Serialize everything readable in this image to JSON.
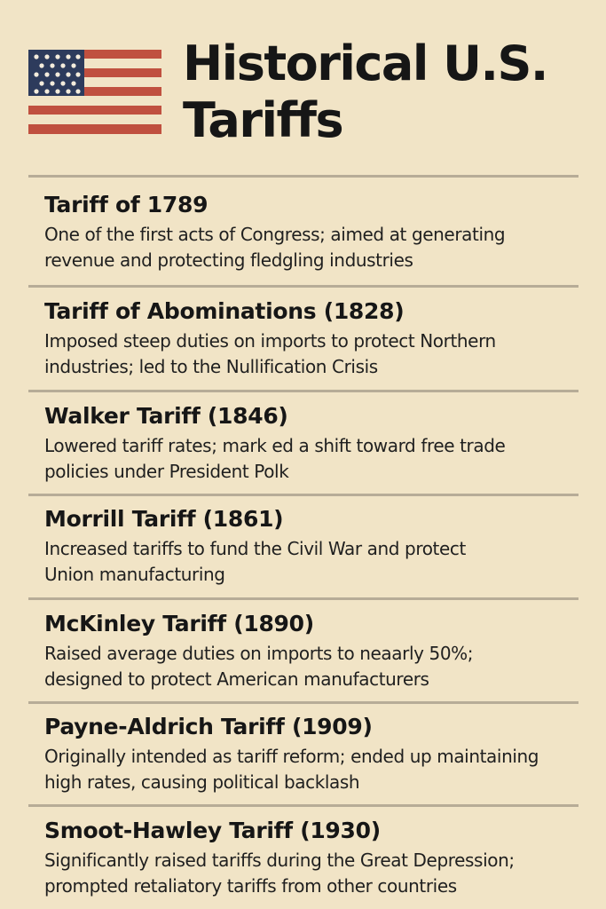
{
  "header": {
    "title_line1": "Historical U.S.",
    "title_line2": "Tariffs",
    "flag_icon": "us-flag-icon"
  },
  "colors": {
    "background": "#f1e4c6",
    "flag_red": "#c0503f",
    "flag_blue": "#2d3b5c",
    "divider": "#b7ac97",
    "text": "#161616"
  },
  "tariffs": [
    {
      "title": "Tariff of 1789",
      "line1": "One of the first acts of Congress; aimed at generating",
      "line2": "revenue and protecting fledgling industries"
    },
    {
      "title": "Tariff of Abominations (1828)",
      "line1": "Imposed steep duties on imports to protect Northern",
      "line2": "industries; led to the Nullification Crisis"
    },
    {
      "title": "Walker Tariff (1846)",
      "line1": "Lowered tariff rates; mark ed a shift toward free trade",
      "line2": "policies under President Polk"
    },
    {
      "title": "Morrill Tariff (1861)",
      "line1": "Increased tariffs to fund the Civil War and protect",
      "line2": "Union manufacturing"
    },
    {
      "title": "McKinley Tariff (1890)",
      "line1": "Raised average duties on imports to neaarly 50%;",
      "line2": "designed to protect American manufacturers"
    },
    {
      "title": "Payne-Aldrich Tariff (1909)",
      "line1": "Originally intended as tariff reform; ended up maintaining",
      "line2": "high rates, causing political backlash"
    },
    {
      "title": "Smoot-Hawley Tariff (1930)",
      "line1": "Significantly raised tariffs during the Great Depression;",
      "line2": "prompted retaliatory tariffs from other countries"
    }
  ]
}
